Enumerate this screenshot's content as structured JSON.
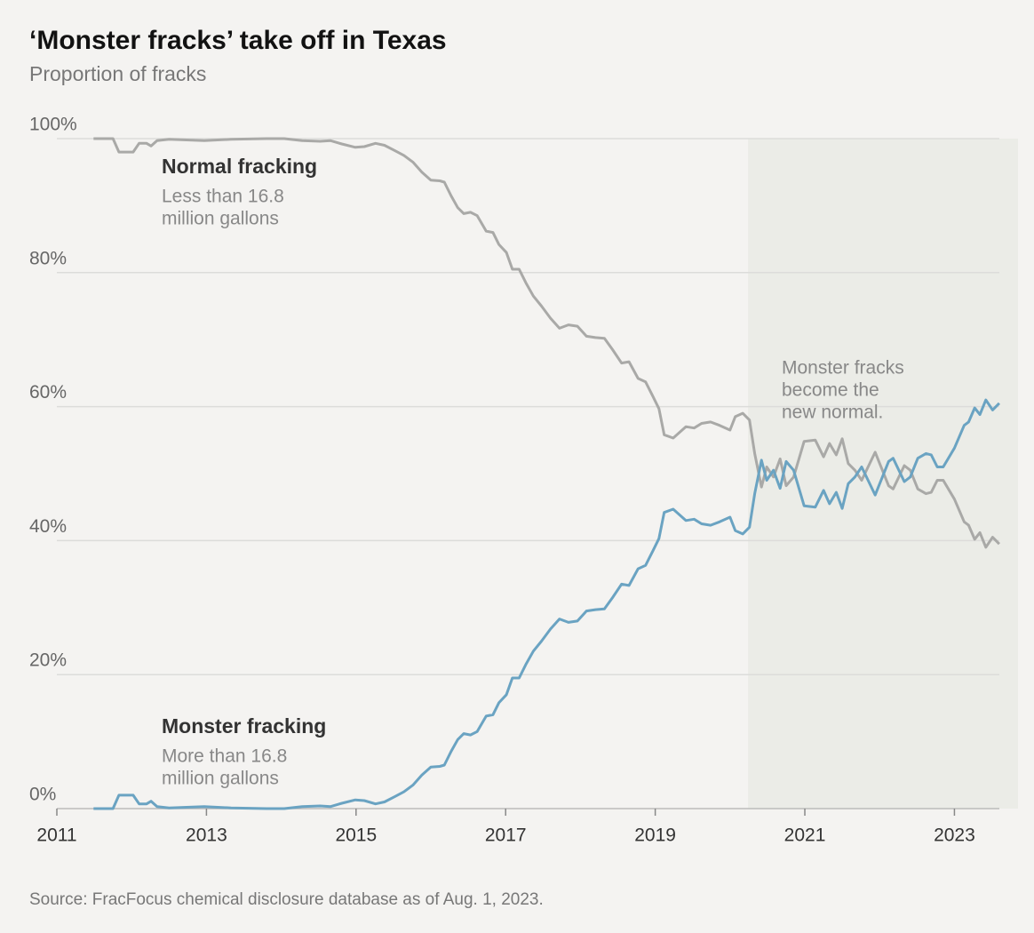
{
  "chart_data": {
    "type": "line",
    "title": "‘Monster fracks’ take off in Texas",
    "subtitle": "Proportion of fracks",
    "source": "Source: FracFocus chemical disclosure database as of Aug. 1, 2023.",
    "annotation": [
      "Monster fracks",
      "become the",
      "new normal."
    ],
    "shaded_xrange": [
      2020.24,
      2023.85
    ],
    "shade_color": "#ebece7",
    "xlim": [
      2011,
      2023.85
    ],
    "xticks": [
      2011,
      2013,
      2015,
      2017,
      2019,
      2021,
      2023
    ],
    "ylim": [
      0,
      100
    ],
    "yticks": [
      {
        "value": 0,
        "label": "0%"
      },
      {
        "value": 20,
        "label": "20%"
      },
      {
        "value": 40,
        "label": "40%"
      },
      {
        "value": 60,
        "label": "60%"
      },
      {
        "value": 80,
        "label": "80%"
      },
      {
        "value": 100,
        "label": "100%"
      }
    ],
    "grid": true,
    "x": [
      2011.49,
      2011.75,
      2011.83,
      2012.02,
      2012.1,
      2012.2,
      2012.26,
      2012.34,
      2012.5,
      2012.97,
      2013.33,
      2013.8,
      2014.04,
      2014.28,
      2014.52,
      2014.66,
      2014.81,
      2014.99,
      2015.11,
      2015.26,
      2015.38,
      2015.52,
      2015.64,
      2015.76,
      2015.88,
      2016.0,
      2016.12,
      2016.18,
      2016.27,
      2016.36,
      2016.44,
      2016.53,
      2016.62,
      2016.74,
      2016.83,
      2016.91,
      2017.01,
      2017.09,
      2017.18,
      2017.27,
      2017.37,
      2017.48,
      2017.6,
      2017.72,
      2017.84,
      2017.96,
      2018.08,
      2018.2,
      2018.32,
      2018.43,
      2018.55,
      2018.65,
      2018.77,
      2018.87,
      2018.97,
      2019.05,
      2019.12,
      2019.24,
      2019.41,
      2019.52,
      2019.62,
      2019.74,
      2019.86,
      2020.0,
      2020.07,
      2020.17,
      2020.26,
      2020.33,
      2020.42,
      2020.49,
      2020.58,
      2020.67,
      2020.75,
      2020.85,
      2020.99,
      2021.14,
      2021.25,
      2021.33,
      2021.42,
      2021.5,
      2021.58,
      2021.67,
      2021.76,
      2021.94,
      2022.12,
      2022.18,
      2022.33,
      2022.41,
      2022.51,
      2022.62,
      2022.69,
      2022.77,
      2022.85,
      2023.0,
      2023.13,
      2023.19,
      2023.27,
      2023.34,
      2023.42,
      2023.51,
      2023.6
    ],
    "series": [
      {
        "name": "Normal fracking",
        "description": [
          "Less than 16.8",
          "million gallons"
        ],
        "color": "#a9a9a7",
        "values": [
          100,
          100,
          98,
          98,
          99.3,
          99.3,
          98.9,
          99.7,
          99.9,
          99.7,
          99.9,
          100,
          100,
          99.7,
          99.6,
          99.7,
          99.2,
          98.7,
          98.8,
          99.3,
          99,
          98.2,
          97.5,
          96.5,
          95,
          93.8,
          93.7,
          93.5,
          91.5,
          89.7,
          88.8,
          89,
          88.5,
          86.2,
          86,
          84.2,
          83,
          80.5,
          80.5,
          78.5,
          76.5,
          75,
          73.2,
          71.7,
          72.2,
          72,
          70.5,
          70.3,
          70.2,
          68.5,
          66.5,
          66.7,
          64.2,
          63.7,
          61.5,
          59.7,
          55.8,
          55.3,
          57,
          56.8,
          57.5,
          57.7,
          57.2,
          56.5,
          58.5,
          59,
          58,
          53,
          48,
          51,
          49.5,
          52.2,
          48.2,
          49.5,
          54.8,
          55,
          52.5,
          54.5,
          52.8,
          55.2,
          51.5,
          50.5,
          49,
          53.2,
          48.2,
          47.7,
          51.2,
          50.5,
          47.7,
          47,
          47.2,
          49,
          49,
          46.2,
          42.8,
          42.3,
          40.2,
          41.2,
          39,
          40.5,
          39.5
        ]
      },
      {
        "name": "Monster fracking",
        "description": [
          "More than 16.8",
          "million gallons"
        ],
        "color": "#6aa3c2",
        "values": [
          0,
          0,
          2,
          2,
          0.7,
          0.7,
          1.1,
          0.3,
          0.1,
          0.3,
          0.1,
          0,
          0,
          0.3,
          0.4,
          0.3,
          0.8,
          1.3,
          1.2,
          0.7,
          1,
          1.8,
          2.5,
          3.5,
          5,
          6.2,
          6.3,
          6.5,
          8.5,
          10.3,
          11.2,
          11,
          11.5,
          13.8,
          14,
          15.8,
          17,
          19.5,
          19.5,
          21.5,
          23.5,
          25,
          26.8,
          28.3,
          27.8,
          28,
          29.5,
          29.7,
          29.8,
          31.5,
          33.5,
          33.3,
          35.8,
          36.3,
          38.5,
          40.3,
          44.2,
          44.7,
          43,
          43.2,
          42.5,
          42.3,
          42.8,
          43.5,
          41.5,
          41,
          42,
          47,
          52,
          49,
          50.5,
          47.8,
          51.8,
          50.5,
          45.2,
          45,
          47.5,
          45.5,
          47.2,
          44.8,
          48.5,
          49.5,
          51,
          46.8,
          51.8,
          52.3,
          48.8,
          49.5,
          52.3,
          53,
          52.8,
          51,
          51,
          53.8,
          57.2,
          57.7,
          59.8,
          58.8,
          61,
          59.5,
          60.5
        ]
      }
    ]
  }
}
